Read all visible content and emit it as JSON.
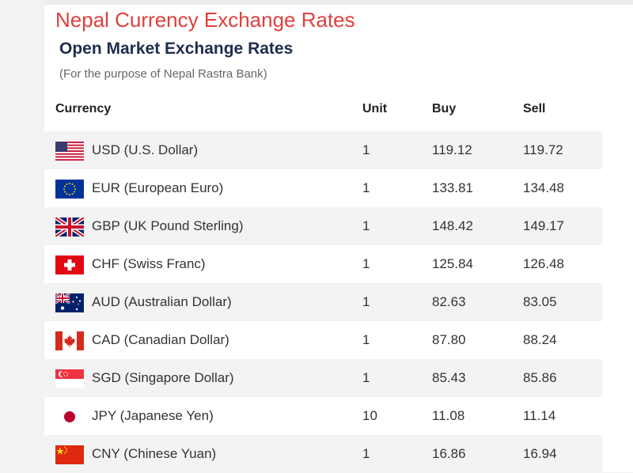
{
  "header": {
    "site_title": "Nepal Currency Exchange Rates",
    "section_title": "Open Market Exchange Rates",
    "subtitle": "(For the purpose of Nepal Rastra Bank)"
  },
  "table": {
    "columns": [
      "Currency",
      "Unit",
      "Buy",
      "Sell"
    ],
    "rows": [
      {
        "flag": "usa-flag-icon",
        "currency": "USD (U.S. Dollar)",
        "unit": "1",
        "buy": "119.12",
        "sell": "119.72"
      },
      {
        "flag": "eu-flag-icon",
        "currency": "EUR (European Euro)",
        "unit": "1",
        "buy": "133.81",
        "sell": "134.48"
      },
      {
        "flag": "uk-flag-icon",
        "currency": "GBP (UK Pound Sterling)",
        "unit": "1",
        "buy": "148.42",
        "sell": "149.17"
      },
      {
        "flag": "swiss-flag-icon",
        "currency": "CHF (Swiss Franc)",
        "unit": "1",
        "buy": "125.84",
        "sell": "126.48"
      },
      {
        "flag": "australia-flag-icon",
        "currency": "AUD (Australian Dollar)",
        "unit": "1",
        "buy": "82.63",
        "sell": "83.05"
      },
      {
        "flag": "canada-flag-icon",
        "currency": "CAD (Canadian Dollar)",
        "unit": "1",
        "buy": "87.80",
        "sell": "88.24"
      },
      {
        "flag": "singapore-flag-icon",
        "currency": "SGD (Singapore Dollar)",
        "unit": "1",
        "buy": "85.43",
        "sell": "85.86"
      },
      {
        "flag": "japan-flag-icon",
        "currency": "JPY (Japanese Yen)",
        "unit": "10",
        "buy": "11.08",
        "sell": "11.14"
      },
      {
        "flag": "china-flag-icon",
        "currency": "CNY (Chinese Yuan)",
        "unit": "1",
        "buy": "16.86",
        "sell": "16.94"
      }
    ]
  },
  "colors": {
    "site_title": "#e0403c",
    "section_title": "#1f2d4e",
    "row_alt": "#f3f3f3"
  }
}
